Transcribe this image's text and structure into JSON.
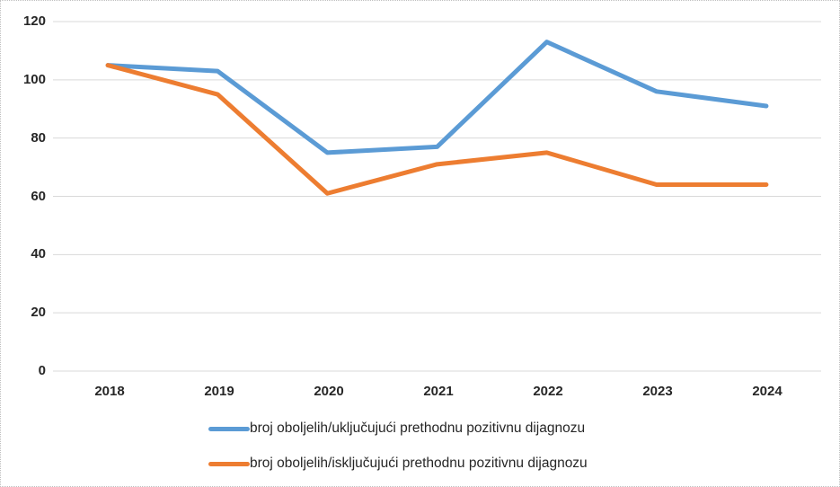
{
  "chart_data": {
    "type": "line",
    "categories": [
      "2018",
      "2019",
      "2020",
      "2021",
      "2022",
      "2023",
      "2024"
    ],
    "series": [
      {
        "name": "broj oboljelih/uključujući prethodnu pozitivnu dijagnozu",
        "color": "#5B9BD5",
        "values": [
          105,
          103,
          75,
          77,
          113,
          96,
          91
        ]
      },
      {
        "name": "broj oboljelih/isključujući prethodnu pozitivnu dijagnozu",
        "color": "#ED7D31",
        "values": [
          105,
          95,
          61,
          71,
          75,
          64,
          64
        ]
      }
    ],
    "ylim": [
      0,
      120
    ],
    "yticks": [
      0,
      20,
      40,
      60,
      80,
      100,
      120
    ],
    "xlabel": "",
    "ylabel": "",
    "grid": true,
    "legend_position": "bottom",
    "gridline_color": "#d9d9d9"
  }
}
